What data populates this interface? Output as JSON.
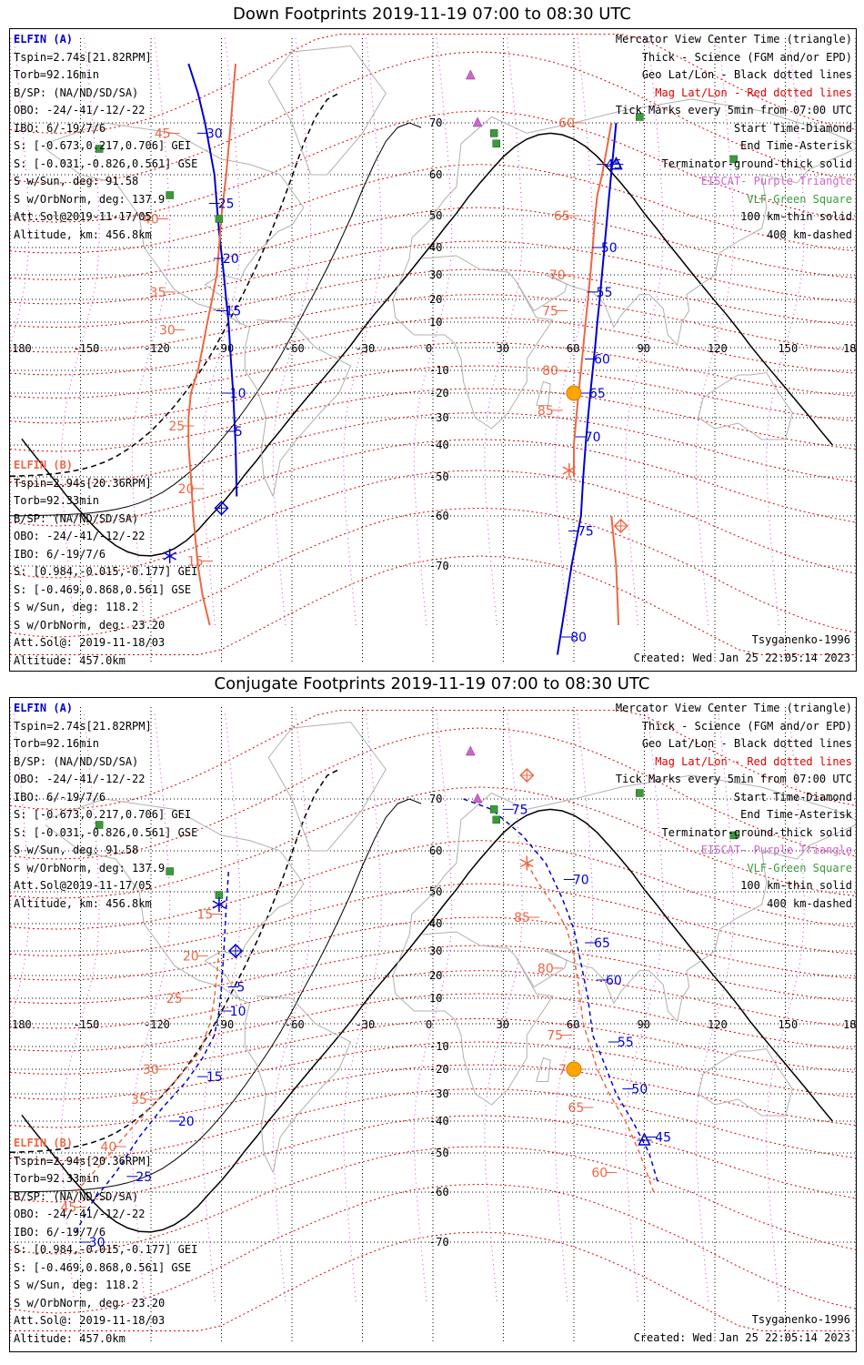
{
  "panels": [
    {
      "title": "Down Footprints 2019-11-19 07:00 to 08:30 UTC",
      "elfin_a": {
        "header": "ELFIN (A)",
        "lines": [
          "Tspin=2.74s[21.82RPM]",
          "Torb=92.16min",
          "B/SP: (NA/ND/SD/SA)",
          "OBO: -24/-41/-12/-22",
          "IBO: 6/-19/7/6",
          "S: [-0.673,0.217,0.706] GEI",
          "S: [-0.031,-0.826,0.561] GSE",
          "S w/Sun, deg: 91.58",
          "S w/OrbNorm, deg: 137.9",
          "Att.Sol@2019-11-17/05",
          "Altitude, km: 456.8km"
        ]
      },
      "elfin_b": {
        "header": "ELFIN (B)",
        "lines": [
          "Tspin=2.94s[20.36RPM]",
          "Torb=92.33min",
          "B/SP: (NA/ND/SD/SA)",
          "OBO: -24/-41/-12/-22",
          "IBO: 6/-19/7/6",
          "S: [0.984,-0.015,-0.177] GEI",
          "S: [-0.469,0.868,0.561] GSE",
          "S w/Sun, deg: 118.2",
          "S w/OrbNorm, deg: 23.20",
          "Att.Sol@: 2019-11-18/03",
          "Altitude: 457.0km"
        ]
      },
      "legend": [
        "Mercator View Center Time (triangle)",
        "Thick - Science (FGM and/or EPD)",
        "Geo Lat/Lon - Black dotted lines",
        "Mag Lat/Lon - Red dotted lines",
        "Tick Marks every 5min from 07:00 UTC",
        "Start Time-Diamond",
        "End Time-Asterisk",
        "Terminator-ground-thick solid",
        "EISCAT- Purple Triangle",
        "VLF-Green Square",
        "100 km-thin solid",
        "400 km-dashed"
      ],
      "model": "Tsyganenko-1996",
      "created": "Created: Wed Jan 25 22:05:14 2023"
    },
    {
      "title": "Conjugate Footprints 2019-11-19 07:00 to 08:30 UTC",
      "elfin_a": {
        "header": "ELFIN (A)",
        "lines": [
          "Tspin=2.74s[21.82RPM]",
          "Torb=92.16min",
          "B/SP: (NA/ND/SD/SA)",
          "OBO: -24/-41/-12/-22",
          "IBO: 6/-19/7/6",
          "S: [-0.673,0.217,0.706] GEI",
          "S: [-0.031,-0.826,0.561] GSE",
          "S w/Sun, deg: 91.58",
          "S w/OrbNorm, deg: 137.9",
          "Att.Sol@2019-11-17/05",
          "Altitude, km: 456.8km"
        ]
      },
      "elfin_b": {
        "header": "ELFIN (B)",
        "lines": [
          "Tspin=2.94s[20.36RPM]",
          "Torb=92.33min",
          "B/SP: (NA/ND/SD/SA)",
          "OBO: -24/-41/-12/-22",
          "IBO: 6/-19/7/6",
          "S: [0.984,-0.015,-0.177] GEI",
          "S: [-0.469,0.868,0.561] GSE",
          "S w/Sun, deg: 118.2",
          "S w/OrbNorm, deg: 23.20",
          "Att.Sol@: 2019-11-18/03",
          "Altitude: 457.0km"
        ]
      },
      "legend": [
        "Mercator View Center Time (triangle)",
        "Thick - Science (FGM and/or EPD)",
        "Geo Lat/Lon - Black dotted lines",
        "Mag Lat/Lon - Red dotted lines",
        "Tick Marks every 5min from 07:00 UTC",
        "Start Time-Diamond",
        "End Time-Asterisk",
        "Terminator-ground-thick solid",
        "EISCAT- Purple Triangle",
        "VLF-Green Square",
        "100 km-thin solid",
        "400 km-dashed"
      ],
      "model": "Tsyganenko-1996",
      "created": "Created: Wed Jan 25 22:05:14 2023"
    }
  ],
  "lon_ticks": [
    "180",
    "-150",
    "-120",
    "-90",
    "-60",
    "-30",
    "0",
    "30",
    "60",
    "90",
    "120",
    "150",
    "180"
  ],
  "lat_ticks": [
    "70",
    "60",
    "50",
    "40",
    "30",
    "20",
    "10",
    "-10",
    "-20",
    "-30",
    "-40",
    "-50",
    "-60",
    "-70"
  ],
  "colors": {
    "elfin_a": "#0000d0",
    "elfin_b": "#ee6644",
    "vlf": "#3a9a3a",
    "eiscat": "#cc66cc",
    "sun": "#ffa500",
    "geo_grid": "#000000",
    "mag_grid": "#dd0000",
    "coast": "#b0b0b0"
  },
  "tracks": {
    "down_a": {
      "lon": [
        -104,
        -100,
        -97,
        -95,
        -93,
        -92,
        -91,
        -90,
        -89,
        -88,
        -87,
        -86,
        -85,
        -84,
        -83.5
      ],
      "lat": [
        80,
        75,
        70,
        65,
        60,
        53,
        45,
        38,
        30,
        20,
        10,
        -5,
        -20,
        -40,
        -55
      ]
    },
    "down_b": {
      "lon": [
        -95,
        -98,
        -100,
        -101,
        -102,
        -103,
        -104,
        -104,
        -103,
        -100,
        -98,
        -96,
        -94,
        -92,
        -91,
        -90,
        -89,
        -88,
        -86,
        -84
      ],
      "lat": [
        -80,
        -75,
        -70,
        -65,
        -60,
        -50,
        -40,
        -30,
        -20,
        -10,
        0,
        10,
        20,
        30,
        40,
        50,
        55,
        60,
        70,
        80
      ]
    },
    "down_a2": {
      "lon": [
        53,
        55,
        57,
        59,
        61,
        63,
        64,
        65,
        66,
        67,
        68,
        69,
        70,
        71,
        73,
        75,
        78
      ],
      "lat": [
        -85,
        -80,
        -75,
        -70,
        -65,
        -60,
        -50,
        -40,
        -30,
        -20,
        -10,
        0,
        10,
        20,
        40,
        55,
        70
      ]
    },
    "down_b2": {
      "lon": [
        60,
        60,
        61,
        62,
        63,
        64,
        65,
        66,
        67,
        68,
        69,
        70,
        72,
        74,
        76
      ],
      "lat": [
        -50,
        -40,
        -30,
        -20,
        -10,
        0,
        10,
        20,
        30,
        40,
        50,
        55,
        60,
        65,
        70
      ]
    },
    "down_b3": {
      "lon": [
        76,
        78,
        79
      ],
      "lat": [
        -60,
        -70,
        -80
      ]
    },
    "conj_a": {
      "lon": [
        -152,
        -145,
        -135,
        -125,
        -115,
        -105,
        -98,
        -93,
        -91,
        -90,
        -89,
        -88,
        -87
      ],
      "lat": [
        -68,
        -62,
        -55,
        -45,
        -35,
        -25,
        -15,
        -5,
        5,
        15,
        30,
        45,
        55
      ]
    },
    "conj_b": {
      "lon": [
        -152,
        -140,
        -128,
        -117,
        -107,
        -99,
        -95,
        -93,
        -92,
        -91
      ],
      "lat": [
        -60,
        -52,
        -42,
        -32,
        -22,
        -12,
        0,
        10,
        20,
        30
      ]
    },
    "conj_a2": {
      "lon": [
        13,
        25,
        38,
        48,
        55,
        60,
        63,
        66,
        68,
        72,
        78,
        85,
        92,
        96
      ],
      "lat": [
        70,
        68,
        63,
        57,
        48,
        38,
        25,
        10,
        -5,
        -15,
        -30,
        -40,
        -50,
        -58
      ]
    },
    "conj_b2": {
      "lon": [
        40,
        45,
        52,
        57,
        60,
        62,
        64,
        67,
        70,
        75,
        82,
        88,
        94
      ],
      "lat": [
        57,
        52,
        45,
        38,
        28,
        15,
        0,
        -10,
        -20,
        -30,
        -40,
        -50,
        -60
      ]
    }
  },
  "tick_labels": {
    "down": [
      {
        "t": "30",
        "c": "a",
        "lon": -98,
        "lat": 68
      },
      {
        "t": "25",
        "c": "a",
        "lon": -93,
        "lat": 53
      },
      {
        "t": "20",
        "c": "a",
        "lon": -91,
        "lat": 36
      },
      {
        "t": "15",
        "c": "a",
        "lon": -90,
        "lat": 15
      },
      {
        "t": "10",
        "c": "a",
        "lon": -88,
        "lat": -20
      },
      {
        "t": "5",
        "c": "a",
        "lon": -86,
        "lat": -35
      },
      {
        "t": "45",
        "c": "b",
        "lon": -110,
        "lat": 68
      },
      {
        "t": "40",
        "c": "b",
        "lon": -115,
        "lat": 49
      },
      {
        "t": "35",
        "c": "b",
        "lon": -112,
        "lat": 23
      },
      {
        "t": "30",
        "c": "b",
        "lon": -108,
        "lat": 7
      },
      {
        "t": "25",
        "c": "b",
        "lon": -104,
        "lat": -33
      },
      {
        "t": "20",
        "c": "b",
        "lon": -100,
        "lat": -53
      },
      {
        "t": "15",
        "c": "b",
        "lon": -96,
        "lat": -69
      },
      {
        "t": "45",
        "c": "a",
        "lon": 72,
        "lat": 62
      },
      {
        "t": "50",
        "c": "a",
        "lon": 70,
        "lat": 40
      },
      {
        "t": "55",
        "c": "a",
        "lon": 68,
        "lat": 23
      },
      {
        "t": "60",
        "c": "a",
        "lon": 67,
        "lat": -5
      },
      {
        "t": "65",
        "c": "a",
        "lon": 65,
        "lat": -20
      },
      {
        "t": "70",
        "c": "a",
        "lon": 63,
        "lat": -37
      },
      {
        "t": "75",
        "c": "a",
        "lon": 60,
        "lat": -63
      },
      {
        "t": "80",
        "c": "a",
        "lon": 57,
        "lat": -82
      },
      {
        "t": "60",
        "c": "b",
        "lon": 62,
        "lat": 70
      },
      {
        "t": "65",
        "c": "b",
        "lon": 60,
        "lat": 50
      },
      {
        "t": "70",
        "c": "b",
        "lon": 58,
        "lat": 30
      },
      {
        "t": "75",
        "c": "b",
        "lon": 55,
        "lat": 15
      },
      {
        "t": "80",
        "c": "b",
        "lon": 55,
        "lat": -10
      },
      {
        "t": "85",
        "c": "b",
        "lon": 53,
        "lat": -27
      }
    ],
    "conj": [
      {
        "t": "5",
        "c": "a",
        "lon": -85,
        "lat": 15
      },
      {
        "t": "10",
        "c": "a",
        "lon": -88,
        "lat": 5
      },
      {
        "t": "15",
        "c": "a",
        "lon": -98,
        "lat": -23
      },
      {
        "t": "20",
        "c": "a",
        "lon": -110,
        "lat": -40
      },
      {
        "t": "25",
        "c": "a",
        "lon": -128,
        "lat": -56
      },
      {
        "t": "30",
        "c": "a",
        "lon": -148,
        "lat": -70
      },
      {
        "t": "15",
        "c": "b",
        "lon": -92,
        "lat": 43
      },
      {
        "t": "20",
        "c": "b",
        "lon": -98,
        "lat": 28
      },
      {
        "t": "25",
        "c": "b",
        "lon": -105,
        "lat": 10
      },
      {
        "t": "30",
        "c": "b",
        "lon": -115,
        "lat": -20
      },
      {
        "t": "35",
        "c": "b",
        "lon": -120,
        "lat": -32
      },
      {
        "t": "40",
        "c": "b",
        "lon": -133,
        "lat": -48
      },
      {
        "t": "45",
        "c": "b",
        "lon": -150,
        "lat": -63
      },
      {
        "t": "75",
        "c": "a",
        "lon": 32,
        "lat": 68
      },
      {
        "t": "70",
        "c": "a",
        "lon": 58,
        "lat": 53
      },
      {
        "t": "65",
        "c": "a",
        "lon": 67,
        "lat": 33
      },
      {
        "t": "60",
        "c": "a",
        "lon": 72,
        "lat": 18
      },
      {
        "t": "55",
        "c": "a",
        "lon": 77,
        "lat": -8
      },
      {
        "t": "50",
        "c": "a",
        "lon": 83,
        "lat": -28
      },
      {
        "t": "45",
        "c": "a",
        "lon": 93,
        "lat": -45
      },
      {
        "t": "85",
        "c": "b",
        "lon": 43,
        "lat": 42
      },
      {
        "t": "80",
        "c": "b",
        "lon": 53,
        "lat": 23
      },
      {
        "t": "75",
        "c": "b",
        "lon": 57,
        "lat": -5
      },
      {
        "t": "70",
        "c": "b",
        "lon": 62,
        "lat": -20
      },
      {
        "t": "65",
        "c": "b",
        "lon": 66,
        "lat": -35
      },
      {
        "t": "60",
        "c": "b",
        "lon": 76,
        "lat": -55
      }
    ]
  },
  "markers": {
    "down": [
      {
        "k": "diamond",
        "c": "a",
        "lon": -90,
        "lat": -58
      },
      {
        "k": "diamond",
        "c": "b",
        "lon": 80,
        "lat": -62
      },
      {
        "k": "asterisk",
        "c": "a",
        "lon": -112,
        "lat": -68
      },
      {
        "k": "asterisk",
        "c": "b",
        "lon": 58,
        "lat": -48
      },
      {
        "k": "triangle",
        "c": "a",
        "lon": 78,
        "lat": 62
      },
      {
        "k": "sun",
        "c": "sun",
        "lon": 60,
        "lat": -20
      }
    ],
    "conj": [
      {
        "k": "diamond",
        "c": "a",
        "lon": -84,
        "lat": 30
      },
      {
        "k": "diamond",
        "c": "b",
        "lon": 40,
        "lat": 74
      },
      {
        "k": "asterisk",
        "c": "a",
        "lon": -91,
        "lat": 46
      },
      {
        "k": "asterisk",
        "c": "b",
        "lon": 40,
        "lat": 57
      },
      {
        "k": "triangle",
        "c": "a",
        "lon": 90,
        "lat": -46
      },
      {
        "k": "sun",
        "c": "sun",
        "lon": 60,
        "lat": -20
      }
    ]
  },
  "stations": {
    "vlf": [
      {
        "lon": -142,
        "lat": 65
      },
      {
        "lon": -91,
        "lat": 49
      },
      {
        "lon": 26,
        "lat": 68
      },
      {
        "lon": 27,
        "lat": 66
      },
      {
        "lon": 88,
        "lat": 71
      },
      {
        "lon": 128,
        "lat": 63
      },
      {
        "lon": -112,
        "lat": 55
      }
    ],
    "eiscat": [
      {
        "lon": 16,
        "lat": 78
      },
      {
        "lon": 19,
        "lat": 70
      }
    ]
  }
}
